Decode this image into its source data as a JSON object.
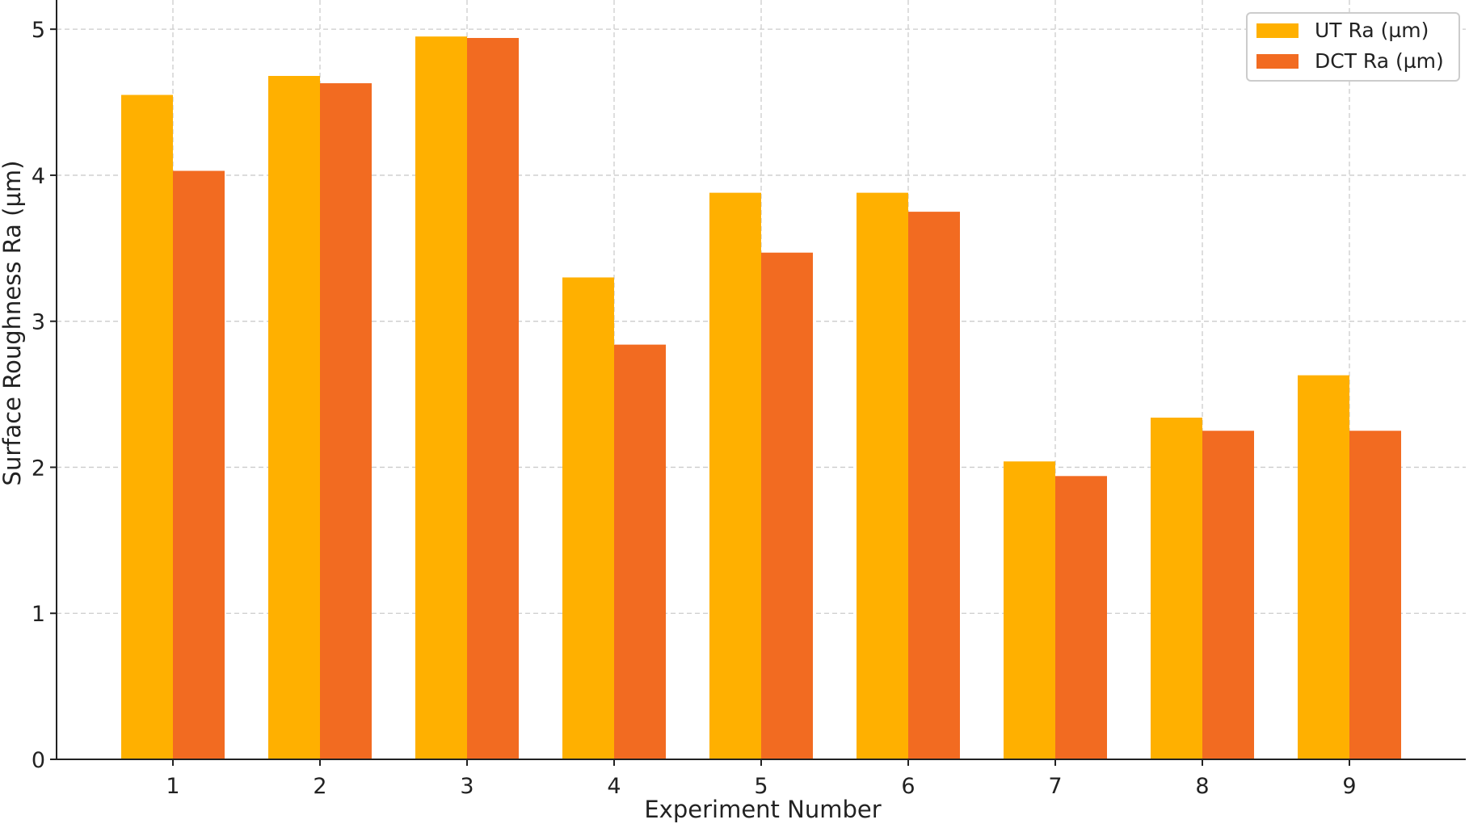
{
  "chart_data": {
    "type": "bar",
    "title": "",
    "xlabel": "Experiment Number",
    "ylabel": "Surface Roughness Ra (µm)",
    "categories": [
      "1",
      "2",
      "3",
      "4",
      "5",
      "6",
      "7",
      "8",
      "9"
    ],
    "series": [
      {
        "name": "UT Ra (µm)",
        "color": "#FFB000",
        "values": [
          4.55,
          4.68,
          4.95,
          3.3,
          3.88,
          3.88,
          2.04,
          2.34,
          2.63
        ]
      },
      {
        "name": "DCT Ra (µm)",
        "color": "#F26B21",
        "values": [
          4.03,
          4.63,
          4.94,
          2.84,
          3.47,
          3.75,
          1.94,
          2.25,
          2.25
        ]
      }
    ],
    "ylim": [
      0,
      5.2
    ],
    "yticks": [
      "0",
      "1",
      "2",
      "3",
      "4",
      "5"
    ],
    "grid": true,
    "legend_position": "top-right"
  }
}
